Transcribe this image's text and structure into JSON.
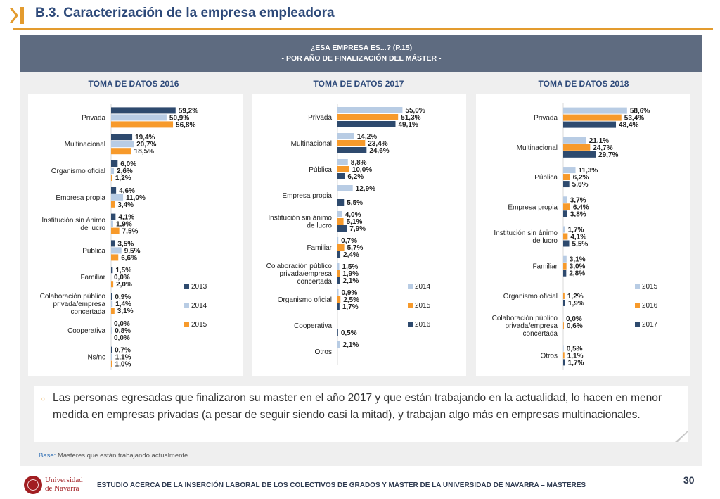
{
  "header": {
    "title": "B.3. Caracterización de la empresa empleadora",
    "accent_color": "#e39b2e",
    "title_color": "#2e4a7a",
    "icon": "chevron-bar-icon"
  },
  "banner": {
    "line1": "¿ESA EMPRESA ES...? (P.15)",
    "line2": "- POR AÑO DE FINALIZACIÓN DEL MÁSTER -"
  },
  "sections": [
    {
      "title": "TOMA DE DATOS 2016"
    },
    {
      "title": "TOMA DE DATOS 2017"
    },
    {
      "title": "TOMA DE DATOS 2018"
    }
  ],
  "chart_data": [
    {
      "type": "bar",
      "orientation": "horizontal",
      "title": "TOMA DE DATOS 2016",
      "categories": [
        "Privada",
        "Multinacional",
        "Organismo oficial",
        "Empresa propia",
        "Institución sin ánimo de lucro",
        "Pública",
        "Familiar",
        "Colaboración público privada/empresa concertada",
        "Cooperativa",
        "Ns/nc"
      ],
      "series": [
        {
          "name": "2013",
          "color": "#2e4a6e",
          "values": [
            59.2,
            19.4,
            6.0,
            4.6,
            4.1,
            3.5,
            1.5,
            0.9,
            0.0,
            0.7
          ],
          "labels": [
            "59,2%",
            "19,4%",
            "6,0%",
            "4,6%",
            "4,1%",
            "3,5%",
            "1,5%",
            "0,9%",
            "0,0%",
            "0,7%"
          ]
        },
        {
          "name": "2014",
          "color": "#b8cce4",
          "values": [
            50.9,
            20.7,
            2.6,
            11.0,
            1.9,
            9.5,
            0.0,
            1.4,
            0.8,
            1.1
          ],
          "labels": [
            "50,9%",
            "20,7%",
            "2,6%",
            "11,0%",
            "1,9%",
            "9,5%",
            "0,0%",
            "1,4%",
            "0,8%",
            "1,1%"
          ]
        },
        {
          "name": "2015",
          "color": "#f79a2b",
          "values": [
            56.8,
            18.5,
            1.2,
            3.4,
            7.5,
            6.6,
            2.0,
            3.1,
            0.0,
            1.0
          ],
          "labels": [
            "56,8%",
            "18,5%",
            "1,2%",
            "3,4%",
            "7,5%",
            "6,6%",
            "2,0%",
            "3,1%",
            "0,0%",
            "1,0%"
          ]
        }
      ],
      "legend": "right"
    },
    {
      "type": "bar",
      "orientation": "horizontal",
      "title": "TOMA DE DATOS 2017",
      "categories": [
        "Privada",
        "Multinacional",
        "Pública",
        "Empresa propia",
        "Institución sin ánimo de lucro",
        "Familiar",
        "Colaboración público privada/empresa concertada",
        "Organismo oficial",
        "Cooperativa",
        "Otros"
      ],
      "series": [
        {
          "name": "2014",
          "color": "#b8cce4",
          "values": [
            55.0,
            14.2,
            8.8,
            12.9,
            4.0,
            0.7,
            1.5,
            0.9,
            0,
            2.1
          ],
          "labels": [
            "55,0%",
            "14,2%",
            "8,8%",
            "12,9%",
            "4,0%",
            "0,7%",
            "1,5%",
            "0,9%",
            "",
            "2,1%"
          ]
        },
        {
          "name": "2015",
          "color": "#f79a2b",
          "values": [
            51.3,
            23.4,
            10.0,
            0,
            5.1,
            5.7,
            1.9,
            2.5,
            0,
            0
          ],
          "labels": [
            "51,3%",
            "23,4%",
            "10,0%",
            "",
            "5,1%",
            "5,7%",
            "1,9%",
            "2,5%",
            "",
            ""
          ]
        },
        {
          "name": "2016",
          "color": "#2e4a6e",
          "values": [
            49.1,
            24.6,
            6.2,
            5.5,
            7.9,
            2.4,
            2.1,
            1.7,
            0.5,
            0
          ],
          "labels": [
            "49,1%",
            "24,6%",
            "6,2%",
            "5,5%",
            "7,9%",
            "2,4%",
            "2,1%",
            "1,7%",
            "0,5%",
            ""
          ]
        }
      ],
      "legend": "right"
    },
    {
      "type": "bar",
      "orientation": "horizontal",
      "title": "TOMA DE DATOS 2018",
      "categories": [
        "Privada",
        "Multinacional",
        "Pública",
        "Empresa propia",
        "Institución sin ánimo de lucro",
        "Familiar",
        "Organismo oficial",
        "Colaboración público privada/empresa concertada",
        "Otros"
      ],
      "series": [
        {
          "name": "2015",
          "color": "#b8cce4",
          "values": [
            58.6,
            21.1,
            11.3,
            3.7,
            1.7,
            3.1,
            0,
            0.0,
            0.5
          ],
          "labels": [
            "58,6%",
            "21,1%",
            "11,3%",
            "3,7%",
            "1,7%",
            "3,1%",
            "",
            "0,0%",
            "0,5%"
          ]
        },
        {
          "name": "2016",
          "color": "#f79a2b",
          "values": [
            53.4,
            24.7,
            6.2,
            6.4,
            4.1,
            3.0,
            1.2,
            0.6,
            1.1
          ],
          "labels": [
            "53,4%",
            "24,7%",
            "6,2%",
            "6,4%",
            "4,1%",
            "3,0%",
            "1,2%",
            "0,6%",
            "1,1%"
          ]
        },
        {
          "name": "2017",
          "color": "#2e4a6e",
          "values": [
            48.4,
            29.7,
            5.6,
            3.8,
            5.5,
            2.8,
            1.9,
            0,
            1.7
          ],
          "labels": [
            "48,4%",
            "29,7%",
            "5,6%",
            "3,8%",
            "5,5%",
            "2,8%",
            "1,9%",
            "",
            "1,7%"
          ]
        }
      ],
      "legend": "right"
    }
  ],
  "comment": {
    "text": "Las personas egresadas que finalizaron su master en el año 2017 y que están trabajando en la actualidad, lo hacen en menor medida en empresas privadas (a pesar de seguir siendo casi la mitad), y trabajan algo más en empresas multinacionales."
  },
  "base": {
    "label": "Base:",
    "text": "Másteres que están trabajando actualmente."
  },
  "footer": {
    "logo_line1": "Universidad",
    "logo_line2": "de Navarra",
    "text": "ESTUDIO ACERCA DE LA INSERCIÓN LABORAL DE LOS COLECTIVOS DE GRADOS Y MÁSTER DE LA UNIVERSIDAD DE NAVARRA – MÁSTERES",
    "page": "30"
  }
}
